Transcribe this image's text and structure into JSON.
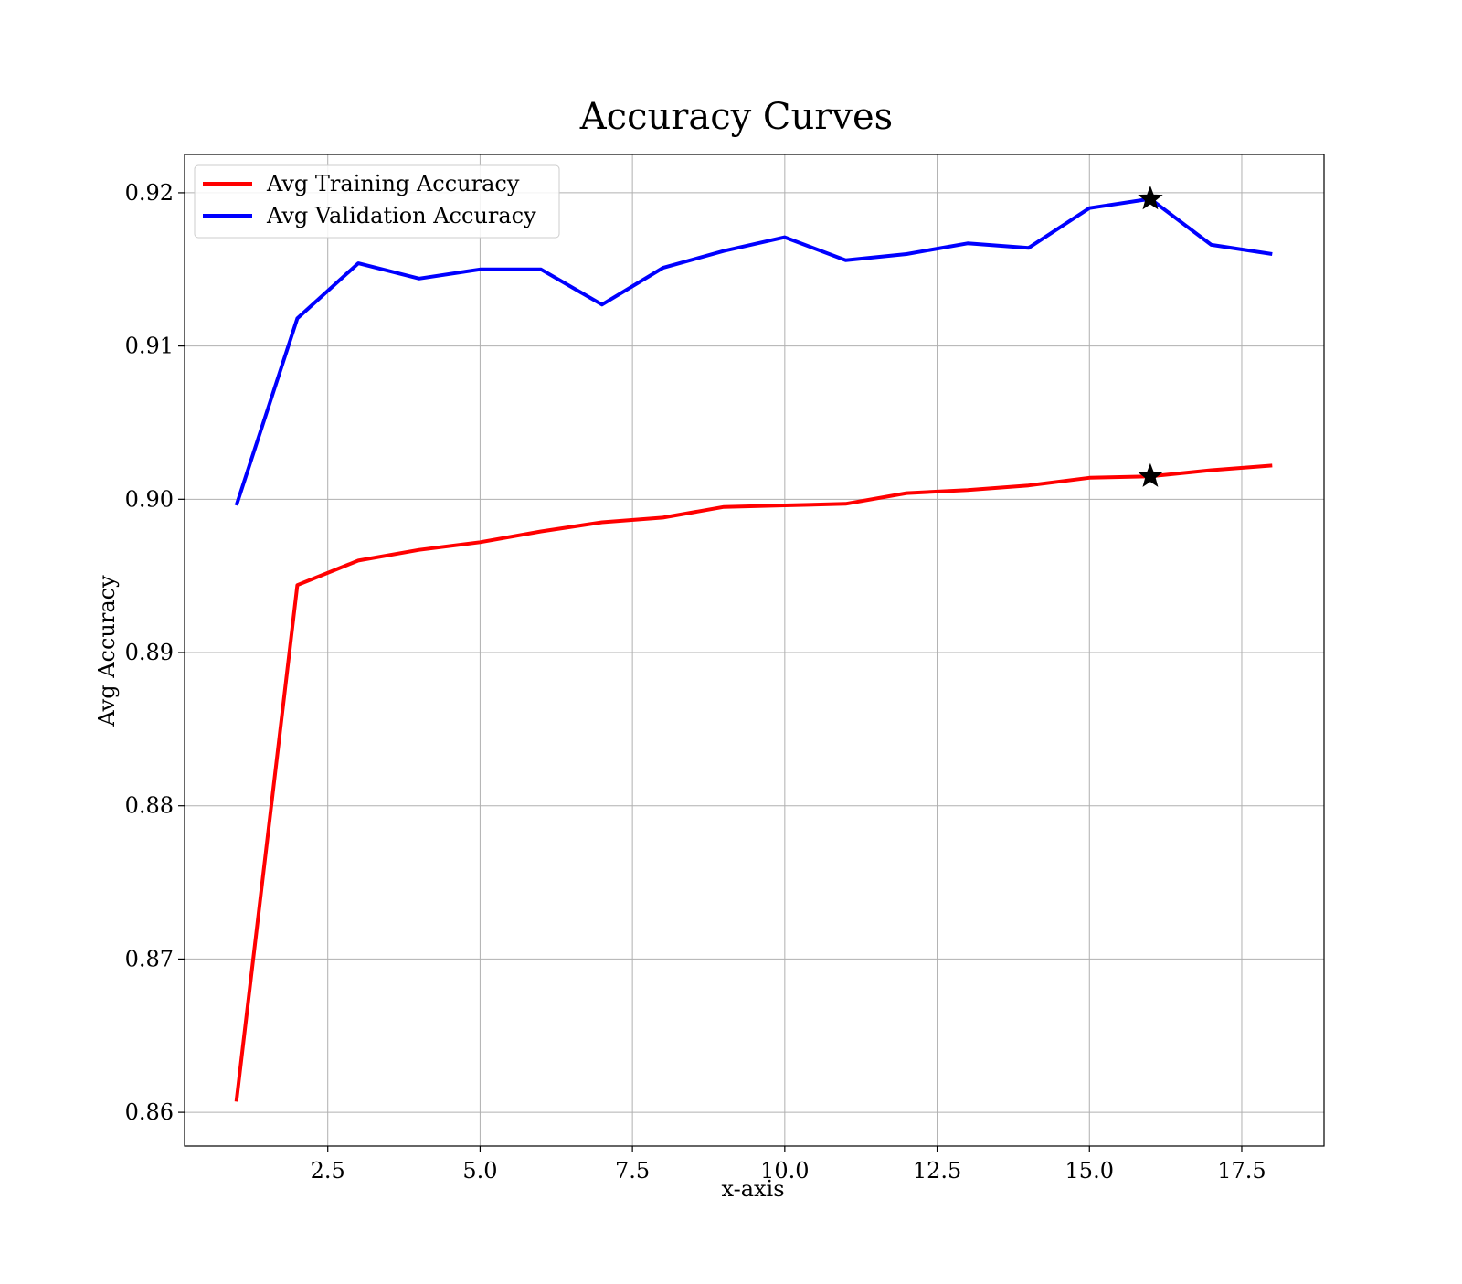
{
  "chart_data": {
    "type": "line",
    "title": "Accuracy Curves",
    "xlabel": "x-axis",
    "ylabel": "Avg Accuracy",
    "xlim": [
      0.15,
      18.85
    ],
    "ylim": [
      0.8578,
      0.9225
    ],
    "xticks": [
      2.5,
      5.0,
      7.5,
      10.0,
      12.5,
      15.0,
      17.5
    ],
    "xtick_labels": [
      "2.5",
      "5.0",
      "7.5",
      "10.0",
      "12.5",
      "15.0",
      "17.5"
    ],
    "yticks": [
      0.86,
      0.87,
      0.88,
      0.89,
      0.9,
      0.91,
      0.92
    ],
    "ytick_labels": [
      "0.86",
      "0.87",
      "0.88",
      "0.89",
      "0.90",
      "0.91",
      "0.92"
    ],
    "grid": true,
    "legend_position": "top-left",
    "x": [
      1,
      2,
      3,
      4,
      5,
      6,
      7,
      8,
      9,
      10,
      11,
      12,
      13,
      14,
      15,
      16,
      17,
      18
    ],
    "series": [
      {
        "name": "Avg Training Accuracy",
        "color": "#ff0000",
        "values": [
          0.8607,
          0.8944,
          0.896,
          0.8967,
          0.8972,
          0.8979,
          0.8985,
          0.8988,
          0.8995,
          0.8996,
          0.8997,
          0.9004,
          0.9006,
          0.9009,
          0.9014,
          0.9015,
          0.9019,
          0.9022
        ]
      },
      {
        "name": "Avg Validation Accuracy",
        "color": "#0000ff",
        "values": [
          0.8996,
          0.9118,
          0.9154,
          0.9144,
          0.915,
          0.915,
          0.9127,
          0.9151,
          0.9162,
          0.9171,
          0.9156,
          0.916,
          0.9167,
          0.9164,
          0.919,
          0.9196,
          0.9166,
          0.916
        ]
      }
    ],
    "markers": [
      {
        "x": 16,
        "y": 0.9015,
        "symbol": "star",
        "color": "#000000"
      },
      {
        "x": 16,
        "y": 0.9196,
        "symbol": "star",
        "color": "#000000"
      }
    ]
  }
}
